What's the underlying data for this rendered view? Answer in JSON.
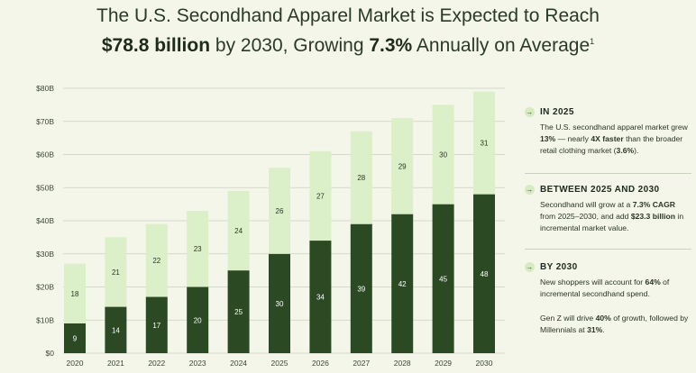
{
  "header": {
    "line1": "The U.S. Secondhand Apparel Market is Expected to Reach",
    "line2_bold_a": "$78.8 billion",
    "line2_mid": " by 2030, Growing ",
    "line2_bold_b": "7.3%",
    "line2_end": " Annually on Average",
    "footnote": "1"
  },
  "colors": {
    "background": "#f4f6ea",
    "dark_bar": "#2b4a24",
    "light_bar": "#dbefc8",
    "grid": "#c9cfbf",
    "accent_arrow_bg": "#d8eac2"
  },
  "chart_data": {
    "type": "bar",
    "stacked": true,
    "categories": [
      "2020",
      "2021",
      "2022",
      "2023",
      "2024",
      "2025",
      "2026",
      "2027",
      "2028",
      "2029",
      "2030"
    ],
    "series": [
      {
        "values": [
          9,
          14,
          17,
          20,
          25,
          30,
          34,
          39,
          42,
          45,
          48
        ]
      },
      {
        "values": [
          18,
          21,
          22,
          23,
          24,
          26,
          27,
          28,
          29,
          30,
          31
        ]
      }
    ],
    "y_ticks": [
      "$0",
      "$10B",
      "$20B",
      "$30B",
      "$40B",
      "$50B",
      "$60B",
      "$70B",
      "$80B"
    ],
    "ylim": [
      0,
      80
    ],
    "grid": true
  },
  "sidebar": {
    "sections": [
      {
        "arrow": "→",
        "heading": "IN 2025",
        "body": [
          {
            "t": "The U.S. secondhand apparel market grew "
          },
          {
            "t": "13%",
            "b": true
          },
          {
            "t": " — nearly "
          },
          {
            "t": "4X faster",
            "b": true
          },
          {
            "t": " than the broader retail clothing market ("
          },
          {
            "t": "3.6%",
            "b": true
          },
          {
            "t": ")."
          }
        ]
      },
      {
        "arrow": "→",
        "heading": "BETWEEN 2025 AND 2030",
        "body": [
          {
            "t": "Secondhand will grow at a "
          },
          {
            "t": "7.3% CAGR",
            "b": true
          },
          {
            "t": " from 2025–2030, and add "
          },
          {
            "t": "$23.3 billion",
            "b": true
          },
          {
            "t": " in incremental market value."
          }
        ]
      },
      {
        "arrow": "→",
        "heading": "BY 2030",
        "body": [
          {
            "t": "New shoppers will account for "
          },
          {
            "t": "64%",
            "b": true
          },
          {
            "t": " of incremental secondhand spend."
          }
        ],
        "body2": [
          {
            "t": "Gen Z will drive "
          },
          {
            "t": "40%",
            "b": true
          },
          {
            "t": " of growth, followed by Millennials at "
          },
          {
            "t": "31%",
            "b": true
          },
          {
            "t": "."
          }
        ]
      }
    ]
  }
}
